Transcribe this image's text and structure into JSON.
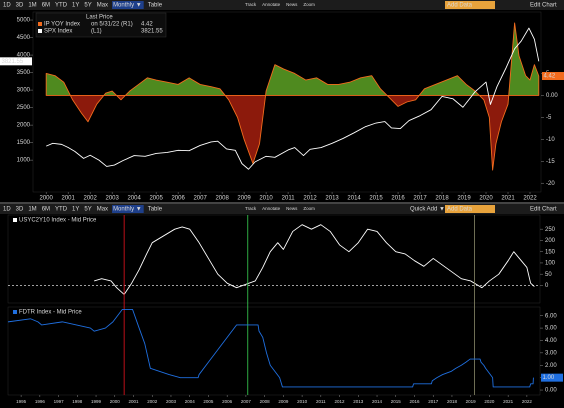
{
  "toolbars": [
    {
      "buttons": [
        "1D",
        "3D",
        "1M",
        "6M",
        "YTD",
        "1Y",
        "5Y",
        "Max"
      ],
      "frequency": "Monthly ▼",
      "table": "Table",
      "tools": [
        "Track",
        "Annotate",
        "News",
        "Zoom"
      ],
      "add": "Add Data",
      "edit": "Edit Chart"
    },
    {
      "buttons": [
        "1D",
        "3D",
        "1M",
        "6M",
        "YTD",
        "1Y",
        "5Y",
        "Max"
      ],
      "frequency": "Monthly ▼",
      "table": "Table",
      "tools": [
        "Track",
        "Annotate",
        "News",
        "Zoom"
      ],
      "quick_add": "Quick Add ▼",
      "add": "Add Data",
      "edit": "Edit Chart"
    }
  ],
  "chart_data": [
    {
      "type": "line",
      "legend_header": "Last Price",
      "xlim": [
        1999.4,
        2022.5
      ],
      "xticks": [
        2000,
        2001,
        2002,
        2003,
        2004,
        2005,
        2006,
        2007,
        2008,
        2009,
        2010,
        2011,
        2012,
        2013,
        2014,
        2015,
        2016,
        2017,
        2018,
        2019,
        2020,
        2021,
        2022
      ],
      "ylim": [
        90,
        5230
      ],
      "yticks": [
        1000,
        1500,
        2000,
        2500,
        3000,
        3500,
        4000,
        4500,
        5000
      ],
      "y_axis_side": "left",
      "y2lim": [
        -22,
        19
      ],
      "y2ticks": [
        5,
        {
          "value": 0,
          "label": "0.00"
        },
        -5,
        -10,
        -15,
        -20
      ],
      "series": [
        {
          "name": "IP YOY Index",
          "legend_note": "on 5/31/22 (R1)",
          "axis": "y2",
          "color": "#f26b1d",
          "fill_above": "#4f8a1f",
          "fill_below": "#8c1a0c",
          "last_label": "4.42",
          "x": [
            2000,
            2000.4,
            2000.8,
            2001.2,
            2001.6,
            2001.9,
            2002.3,
            2002.7,
            2003.0,
            2003.4,
            2003.8,
            2004.2,
            2004.6,
            2005.0,
            2005.5,
            2006.0,
            2006.5,
            2007.0,
            2007.5,
            2007.9,
            2008.3,
            2008.7,
            2009.0,
            2009.4,
            2009.7,
            2010.0,
            2010.4,
            2010.8,
            2011.3,
            2011.8,
            2012.3,
            2012.8,
            2013.3,
            2013.8,
            2014.3,
            2014.8,
            2015.2,
            2015.6,
            2016.0,
            2016.4,
            2016.8,
            2017.2,
            2017.7,
            2018.2,
            2018.7,
            2019.1,
            2019.5,
            2019.9,
            2020.15,
            2020.3,
            2020.45,
            2020.7,
            2021.0,
            2021.3,
            2021.5,
            2021.8,
            2022.0,
            2022.2,
            2022.4
          ],
          "values": [
            5,
            4.5,
            3,
            -1,
            -4,
            -6,
            -2,
            0.5,
            1,
            -1,
            1,
            2.5,
            4,
            3.5,
            3,
            2.5,
            4,
            2.5,
            2,
            1.5,
            -1,
            -5,
            -10,
            -15.5,
            -11,
            1,
            7,
            6,
            5,
            3.5,
            4,
            2.5,
            2.5,
            3,
            4,
            4.5,
            1.5,
            -0.5,
            -2.5,
            -1.5,
            -1,
            1.5,
            2.5,
            3.5,
            4.5,
            2.5,
            1,
            -1,
            -5,
            -17,
            -11,
            -6,
            -2,
            16.5,
            9,
            4.5,
            3.5,
            7,
            4.42
          ]
        },
        {
          "name": "SPX Index",
          "legend_note": "(L1)",
          "color": "#ffffff",
          "last_label": "3821.55",
          "x": [
            2000,
            2000.3,
            2000.7,
            2001.0,
            2001.3,
            2001.7,
            2002.0,
            2002.4,
            2002.75,
            2003.1,
            2003.5,
            2004.0,
            2004.5,
            2005.0,
            2005.5,
            2006.0,
            2006.5,
            2007.0,
            2007.5,
            2007.8,
            2008.2,
            2008.6,
            2008.9,
            2009.2,
            2009.5,
            2010.0,
            2010.4,
            2011.0,
            2011.3,
            2011.7,
            2012.0,
            2012.5,
            2013.0,
            2013.5,
            2014.0,
            2014.5,
            2015.0,
            2015.4,
            2015.7,
            2016.1,
            2016.5,
            2017.0,
            2017.5,
            2018.0,
            2018.5,
            2018.95,
            2019.5,
            2020.0,
            2020.2,
            2020.5,
            2020.9,
            2021.3,
            2021.6,
            2021.95,
            2022.2,
            2022.4
          ],
          "values": [
            1400,
            1480,
            1450,
            1360,
            1250,
            1050,
            1140,
            1000,
            820,
            860,
            990,
            1130,
            1110,
            1190,
            1220,
            1280,
            1270,
            1420,
            1520,
            1540,
            1320,
            1280,
            900,
            740,
            950,
            1110,
            1080,
            1290,
            1360,
            1130,
            1310,
            1360,
            1480,
            1620,
            1780,
            1950,
            2060,
            2100,
            1920,
            1900,
            2130,
            2270,
            2440,
            2820,
            2750,
            2510,
            2950,
            3230,
            2590,
            3100,
            3620,
            4180,
            4400,
            4770,
            4450,
            3821.55
          ]
        }
      ]
    },
    {
      "type": "line",
      "xlim": [
        1994.3,
        2022.7
      ],
      "ylim": [
        -78,
        313
      ],
      "yticks": [
        0,
        50,
        100,
        150,
        200,
        250
      ],
      "y_axis_side": "right",
      "zero_line": true,
      "series": [
        {
          "name": "USYC2Y10 Index - Mid Price",
          "color": "#ffffff",
          "x": [
            1998.9,
            1999.3,
            1999.8,
            2000.1,
            2000.5,
            2000.9,
            2001.3,
            2001.7,
            2002.0,
            2002.4,
            2002.8,
            2003.2,
            2003.6,
            2004.0,
            2004.5,
            2005.0,
            2005.5,
            2006.0,
            2006.5,
            2007.0,
            2007.5,
            2007.9,
            2008.3,
            2008.7,
            2009.0,
            2009.5,
            2010.0,
            2010.5,
            2011.0,
            2011.5,
            2012.0,
            2012.5,
            2013.0,
            2013.5,
            2014.0,
            2014.5,
            2015.0,
            2015.5,
            2016.0,
            2016.5,
            2017.0,
            2017.5,
            2018.0,
            2018.5,
            2019.0,
            2019.6,
            2020.0,
            2020.5,
            2021.0,
            2021.3,
            2021.7,
            2022.0,
            2022.2,
            2022.4
          ],
          "values": [
            20,
            30,
            20,
            -10,
            -40,
            10,
            70,
            140,
            190,
            210,
            230,
            250,
            260,
            250,
            190,
            120,
            50,
            10,
            -10,
            5,
            20,
            80,
            150,
            190,
            160,
            240,
            270,
            250,
            270,
            240,
            180,
            150,
            190,
            250,
            240,
            190,
            150,
            140,
            110,
            85,
            120,
            90,
            60,
            30,
            20,
            -10,
            20,
            50,
            110,
            150,
            110,
            80,
            10,
            -5
          ]
        }
      ]
    },
    {
      "type": "line",
      "xlim": [
        1994.3,
        2022.7
      ],
      "xticks": [
        1995,
        1996,
        1997,
        1998,
        1999,
        2000,
        2001,
        2002,
        2003,
        2004,
        2005,
        2006,
        2007,
        2008,
        2009,
        2010,
        2011,
        2012,
        2013,
        2014,
        2015,
        2016,
        2017,
        2018,
        2019,
        2020,
        2021,
        2022
      ],
      "ylim": [
        -0.4,
        6.7
      ],
      "yticks": [
        {
          "value": 0,
          "label": "0.00"
        },
        {
          "value": 1,
          "label": "1.00"
        },
        {
          "value": 2,
          "label": "2.00"
        },
        {
          "value": 3,
          "label": "3.00"
        },
        {
          "value": 4,
          "label": "4.00"
        },
        {
          "value": 5,
          "label": "5.00"
        },
        {
          "value": 6,
          "label": "6.00"
        }
      ],
      "y_axis_side": "right",
      "markers": [
        {
          "x": 2000.5,
          "color": "#e8141e"
        },
        {
          "x": 2007.1,
          "color": "#39d353"
        },
        {
          "x": 2019.2,
          "color": "#8a8a6a"
        }
      ],
      "series": [
        {
          "name": "FDTR Index - Mid Price",
          "color": "#1f6fe0",
          "last_label": "1.00",
          "x": [
            1994.3,
            1995.5,
            1995.9,
            1996.1,
            1997.2,
            1998.7,
            1998.9,
            1999.5,
            1999.9,
            2000.4,
            2000.95,
            2001.3,
            2001.6,
            2001.9,
            2002.9,
            2003.5,
            2004.45,
            2004.5,
            2005.0,
            2005.5,
            2006.0,
            2006.5,
            2007.65,
            2007.7,
            2007.9,
            2008.1,
            2008.3,
            2008.8,
            2008.95,
            2015.9,
            2015.95,
            2016.9,
            2016.95,
            2017.2,
            2017.5,
            2017.95,
            2018.2,
            2018.5,
            2018.75,
            2018.97,
            2019.5,
            2019.55,
            2019.7,
            2019.8,
            2020.17,
            2020.2,
            2022.15,
            2022.2,
            2022.33,
            2022.35
          ],
          "values": [
            5.5,
            5.75,
            5.5,
            5.25,
            5.5,
            5.0,
            4.75,
            5.0,
            5.5,
            6.5,
            6.5,
            5.0,
            3.75,
            1.75,
            1.25,
            1.0,
            1.0,
            1.25,
            2.25,
            3.25,
            4.25,
            5.25,
            5.25,
            4.75,
            4.25,
            3.0,
            2.0,
            1.0,
            0.25,
            0.25,
            0.5,
            0.5,
            0.75,
            1.0,
            1.25,
            1.5,
            1.75,
            2.0,
            2.25,
            2.5,
            2.5,
            2.25,
            2.0,
            1.75,
            1.0,
            0.25,
            0.25,
            0.5,
            0.5,
            1.0
          ]
        }
      ]
    }
  ]
}
